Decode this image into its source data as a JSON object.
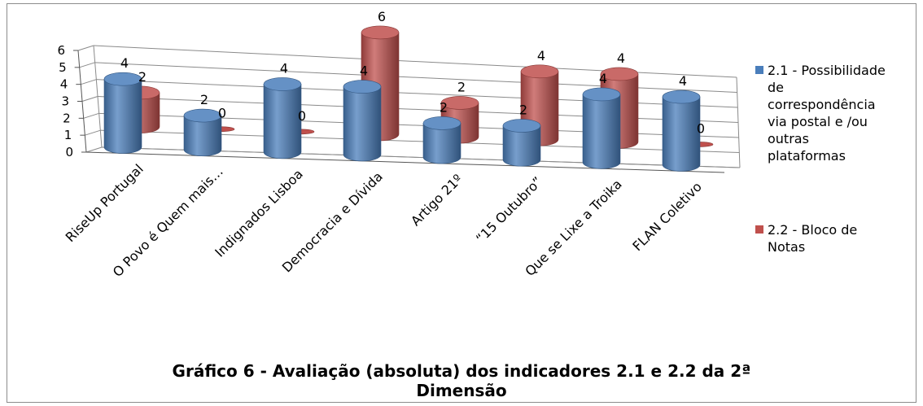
{
  "chart_data": {
    "type": "bar",
    "style": "3d-cylinder",
    "categories": [
      "RiseUp Portugal",
      "O Povo é Quem mais…",
      "Indignados Lisboa",
      "Democracia e Dívida",
      "Artigo 21º",
      "“15 Outubro”",
      "Que se Lixe a Troika",
      "FLAN Coletivo"
    ],
    "series": [
      {
        "name": "2.1 - Possibilidade de correspondência via postal e /ou outras plataformas",
        "color": "#4a7ebb",
        "values": [
          4,
          2,
          4,
          4,
          2,
          2,
          4,
          4
        ]
      },
      {
        "name": "2.2 - Bloco de Notas",
        "color": "#c0504d",
        "values": [
          2,
          0,
          0,
          6,
          2,
          4,
          4,
          0
        ]
      }
    ],
    "y_ticks": [
      "0",
      "1",
      "2",
      "3",
      "4",
      "5",
      "6"
    ],
    "ylim": [
      0,
      6
    ],
    "grid": true,
    "legend_position": "right"
  },
  "legend": [
    {
      "label": "2.1 - Possibilidade\nde\ncorrespondência\nvia postal e /ou\noutras\nplataformas",
      "color": "#4a7ebb"
    },
    {
      "label": "2.2 - Bloco de\nNotas",
      "color": "#c0504d"
    }
  ],
  "caption": "Gráfico 6 - Avaliação (absoluta) dos indicadores 2.1 e 2.2 da 2ª\nDimensão"
}
